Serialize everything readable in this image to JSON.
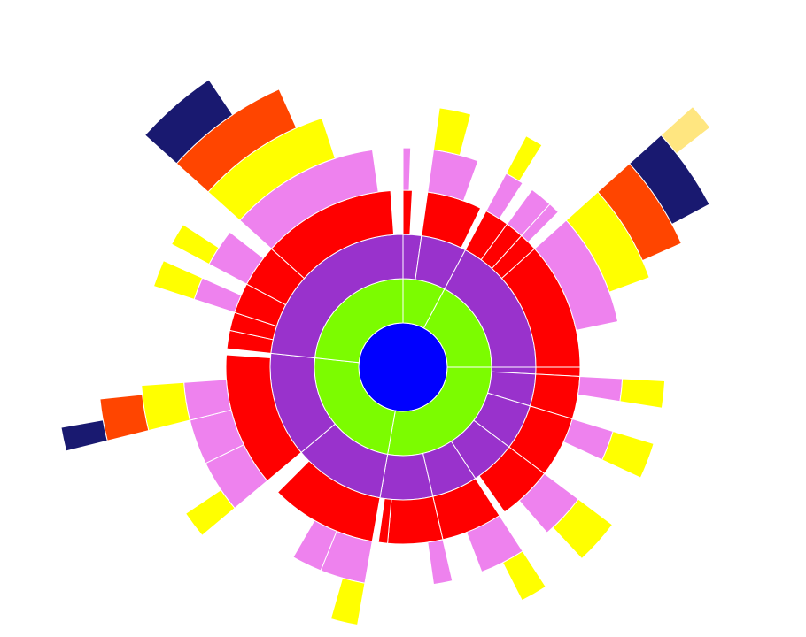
{
  "chart_data": {
    "type": "sunburst",
    "depth_colors": [
      "#0000ff",
      "#7cfc00",
      "#9932cc",
      "#ff0000",
      "#ee82ee",
      "#ffff00",
      "#ff4500",
      "#191970",
      "#ffe680"
    ],
    "root": {
      "value": 360,
      "children": [
        {
          "value": 28,
          "children": [
            {
              "value": 8,
              "children": [
                {
                  "value": 3,
                  "children": [
                    {
                      "value": 2
                    }
                  ]
                }
              ]
            },
            {
              "value": 20,
              "children": [
                {
                  "value": 18,
                  "children": [
                    {
                      "value": 12,
                      "children": [
                        {
                          "value": 7
                        }
                      ]
                    }
                  ]
                }
              ]
            }
          ]
        },
        {
          "value": 62,
          "children": [
            {
              "value": 62,
              "children": [
                {
                  "value": 8,
                  "children": [
                    {
                      "value": 5,
                      "children": [
                        {
                          "value": 4
                        }
                      ]
                    }
                  ]
                },
                {
                  "value": 6,
                  "children": [
                    {
                      "value": 6
                    }
                  ]
                },
                {
                  "value": 6,
                  "children": [
                    {
                      "value": 3
                    }
                  ]
                },
                {
                  "value": 42,
                  "children": [
                    {
                      "value": 30,
                      "children": [
                        {
                          "value": 22,
                          "children": [
                            {
                              "value": 18,
                              "children": [
                                {
                                  "value": 14,
                                  "children": [
                                    {
                                      "value": 4
                                    }
                                  ]
                                }
                              ]
                            }
                          ]
                        }
                      ]
                    }
                  ]
                }
              ]
            }
          ]
        },
        {
          "value": 100,
          "children": [
            {
              "value": 3,
              "children": [
                {
                  "value": 3
                }
              ]
            },
            {
              "value": 14,
              "children": [
                {
                  "value": 14,
                  "children": [
                    {
                      "value": 6,
                      "children": [
                        {
                          "value": 6
                        }
                      ]
                    }
                  ]
                }
              ]
            },
            {
              "value": 20,
              "children": [
                {
                  "value": 20,
                  "children": [
                    {
                      "value": 8,
                      "children": [
                        {
                          "value": 8
                        }
                      ]
                    }
                  ]
                }
              ]
            },
            {
              "value": 20,
              "children": [
                {
                  "value": 18,
                  "children": [
                    {
                      "value": 12,
                      "children": [
                        {
                          "value": 10
                        }
                      ]
                    }
                  ]
                }
              ]
            },
            {
              "value": 20,
              "children": [
                {
                  "value": 20,
                  "children": [
                    {
                      "value": 12,
                      "children": [
                        {
                          "value": 6
                        }
                      ]
                    }
                  ]
                }
              ]
            },
            {
              "value": 23,
              "children": [
                {
                  "value": 18,
                  "children": [
                    {
                      "value": 5
                    }
                  ]
                },
                {
                  "value": 3
                }
              ]
            }
          ]
        },
        {
          "value": 86,
          "children": [
            {
              "value": 40,
              "children": [
                {
                  "value": 35,
                  "children": [
                    {
                      "value": 12,
                      "children": [
                        {
                          "value": 6
                        }
                      ]
                    },
                    {
                      "value": 8
                    }
                  ]
                }
              ]
            },
            {
              "value": 46,
              "children": [
                {
                  "value": 44,
                  "children": [
                    {
                      "value": 14,
                      "children": [
                        {
                          "value": 6
                        }
                      ]
                    },
                    {
                      "value": 12
                    },
                    {
                      "value": 10,
                      "children": [
                        {
                          "value": 10,
                          "children": [
                            {
                              "value": 8,
                              "children": [
                                {
                                  "value": 4
                                }
                              ]
                            }
                          ]
                        }
                      ]
                    }
                  ]
                }
              ]
            }
          ]
        },
        {
          "value": 84,
          "children": [
            {
              "value": 84,
              "children": [
                {
                  "value": 6
                },
                {
                  "value": 6
                },
                {
                  "value": 10,
                  "children": [
                    {
                      "value": 6,
                      "children": [
                        {
                          "value": 6
                        }
                      ]
                    }
                  ]
                },
                {
                  "value": 14,
                  "children": [
                    {
                      "value": 10,
                      "children": [
                        {
                          "value": 5
                        }
                      ]
                    }
                  ]
                },
                {
                  "value": 44,
                  "children": [
                    {
                      "value": 40,
                      "children": [
                        {
                          "value": 30,
                          "children": [
                            {
                              "value": 24,
                              "children": [
                                {
                                  "value": 14
                                }
                              ]
                            }
                          ]
                        }
                      ]
                    }
                  ]
                }
              ]
            }
          ]
        }
      ]
    }
  }
}
